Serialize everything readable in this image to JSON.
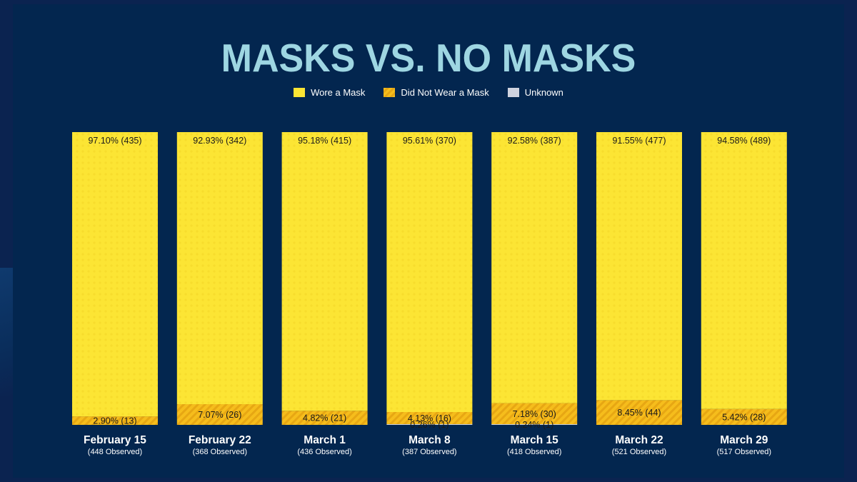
{
  "page": {
    "title": "MASKS VS. NO MASKS"
  },
  "legend": [
    {
      "label": "Wore a Mask",
      "color": "#fce534"
    },
    {
      "label": "Did Not Wear a Mask",
      "color": "#f4b81c"
    },
    {
      "label": "Unknown",
      "color": "#cfd3df"
    }
  ],
  "chart_data": {
    "type": "bar",
    "stacked": true,
    "title": "MASKS VS. NO MASKS",
    "ylim": [
      0,
      100
    ],
    "categories": [
      "February 15",
      "February 22",
      "March 1",
      "March 8",
      "March 15",
      "March 22",
      "March 29"
    ],
    "subtitles": [
      "(448 Observed)",
      "(368 Observed)",
      "(436 Observed)",
      "(387 Observed)",
      "(418 Observed)",
      "(521 Observed)",
      "(517 Observed)"
    ],
    "series": [
      {
        "name": "Wore a Mask",
        "values": [
          97.1,
          92.93,
          95.18,
          95.61,
          92.58,
          91.55,
          94.58
        ],
        "labels": [
          "97.10% (435)",
          "92.93% (342)",
          "95.18% (415)",
          "95.61% (370)",
          "92.58% (387)",
          "91.55% (477)",
          "94.58% (489)"
        ]
      },
      {
        "name": "Did Not Wear a Mask",
        "values": [
          2.9,
          7.07,
          4.82,
          4.13,
          7.18,
          8.45,
          5.42
        ],
        "labels": [
          "2.90% (13)",
          "7.07% (26)",
          "4.82% (21)",
          "4.13% (16)",
          "7.18% (30)",
          "8.45% (44)",
          "5.42% (28)"
        ]
      },
      {
        "name": "Unknown",
        "values": [
          0,
          0,
          0,
          0.26,
          0.24,
          0,
          0
        ],
        "labels": [
          "",
          "",
          "",
          "0.26% (1)",
          "0.24% (1)",
          "",
          ""
        ]
      }
    ]
  }
}
